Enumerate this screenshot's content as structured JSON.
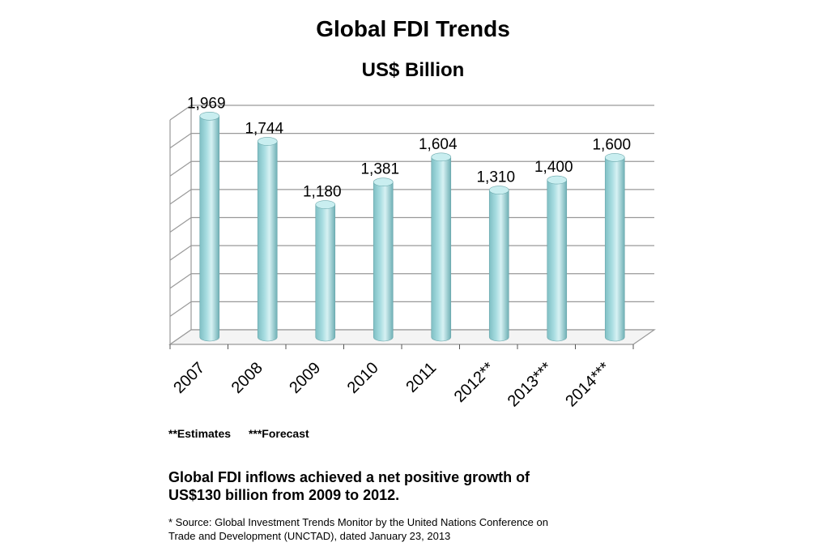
{
  "chart_data": {
    "type": "bar",
    "title": "Global FDI Trends",
    "subtitle": "US$ Billion",
    "categories": [
      "2007",
      "2008",
      "2009",
      "2010",
      "2011",
      "2012**",
      "2013***",
      "2014***"
    ],
    "values": [
      1969,
      1744,
      1180,
      1381,
      1604,
      1310,
      1400,
      1600
    ],
    "value_labels": [
      "1,969",
      "1,744",
      "1,180",
      "1,381",
      "1,604",
      "1,310",
      "1,400",
      "1,600"
    ],
    "ylim": [
      0,
      2000
    ],
    "grid": true,
    "xlabel": "",
    "ylabel": "",
    "bar_color": "#a8dde1",
    "grid_color": "#999999"
  },
  "legend": {
    "estimates": "**Estimates",
    "forecast": "***Forecast"
  },
  "summary": {
    "line1": "Global FDI inflows achieved a net positive growth of",
    "line2": "US$130 billion from 2009 to 2012."
  },
  "source": {
    "line1": "* Source: Global Investment Trends Monitor by the United Nations Conference on",
    "line2": "Trade and Development (UNCTAD), dated January 23, 2013"
  }
}
